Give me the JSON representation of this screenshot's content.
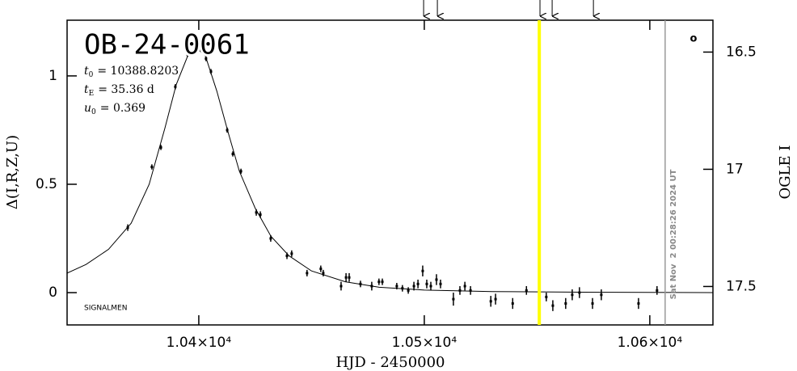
{
  "chart_data": {
    "type": "lightcurve",
    "title": "OB-24-0061",
    "parameters": [
      {
        "symbol": "t",
        "sub": "0",
        "text": "= 10388.8203"
      },
      {
        "symbol": "t",
        "sub": "E",
        "text": "= 35.36 d"
      },
      {
        "symbol": "u",
        "sub": "0",
        "text": "= 0.369"
      }
    ],
    "source_label": "SIGNALMEN",
    "timestamp": "Sat Nov  2 00:28:26 2024 UT",
    "corner_mark": "o",
    "x_label": "HJD - 2450000",
    "y_label": "Δ(I,R,Z,U)",
    "y2_label": "OGLE I",
    "xlim": [
      10341.6,
      10628.0
    ],
    "xticks": [
      {
        "value": 10400,
        "label": "1.04×10⁴"
      },
      {
        "value": 10500,
        "label": "1.05×10⁴"
      },
      {
        "value": 10600,
        "label": "1.06×10⁴"
      }
    ],
    "ylim": [
      -0.149,
      1.257
    ],
    "yticks": [
      0,
      0.5,
      1
    ],
    "y2lim": [
      17.664,
      16.364
    ],
    "y2ticks": [
      16.5,
      17,
      17.5
    ],
    "color": "#000000",
    "highlight_x": 10551.0,
    "highlight_color": "#ffff00",
    "date_line_x": 10606.8,
    "date_line_color": "#999999",
    "arrows_x": [
      10499.7,
      10505.8,
      10551.3,
      10556.7,
      10575.0
    ],
    "model": {
      "x": [
        10341.6,
        10350,
        10360,
        10370,
        10378,
        10385,
        10390,
        10395,
        10399,
        10403,
        10408,
        10413,
        10418,
        10425,
        10432,
        10440,
        10450,
        10465,
        10480,
        10500,
        10530,
        10570,
        10628
      ],
      "y": [
        0.09,
        0.13,
        0.2,
        0.32,
        0.5,
        0.76,
        0.96,
        1.09,
        1.13,
        1.09,
        0.93,
        0.74,
        0.56,
        0.39,
        0.26,
        0.17,
        0.1,
        0.05,
        0.025,
        0.012,
        0.005,
        0.002,
        0
      ]
    },
    "points": {
      "x": [
        10368.5,
        10379.2,
        10383.2,
        10389.6,
        10395.0,
        10400.4,
        10403.2,
        10405.4,
        10412.6,
        10415.1,
        10418.7,
        10425.5,
        10427.3,
        10431.9,
        10439.1,
        10441.2,
        10448.0,
        10454.1,
        10455.2,
        10463.1,
        10465.3,
        10466.7,
        10471.7,
        10476.7,
        10479.9,
        10481.4,
        10487.8,
        10490.3,
        10492.9,
        10495.4,
        10497.2,
        10499.3,
        10501.1,
        10502.9,
        10505.4,
        10507.2,
        10512.9,
        10515.8,
        10518.0,
        10520.5,
        10529.5,
        10531.6,
        10539.2,
        10545.3,
        10551.0,
        10554.1,
        10557.0,
        10562.7,
        10565.6,
        10568.8,
        10574.6,
        10578.5,
        10595.0,
        10603.2
      ],
      "y": [
        0.3,
        0.58,
        0.67,
        0.95,
        1.1,
        1.13,
        1.08,
        1.02,
        0.75,
        0.64,
        0.56,
        0.37,
        0.36,
        0.25,
        0.17,
        0.18,
        0.09,
        0.11,
        0.09,
        0.03,
        0.07,
        0.07,
        0.04,
        0.03,
        0.05,
        0.05,
        0.03,
        0.02,
        0.01,
        0.03,
        0.04,
        0.1,
        0.04,
        0.03,
        0.06,
        0.04,
        -0.03,
        0.01,
        0.03,
        0.01,
        -0.04,
        -0.03,
        -0.05,
        0.01,
        -0.05,
        -0.02,
        -0.06,
        -0.05,
        -0.01,
        0.0,
        -0.05,
        -0.01,
        -0.05,
        0.01
      ],
      "err": [
        0.015,
        0.012,
        0.012,
        0.012,
        0.012,
        0.012,
        0.012,
        0.012,
        0.012,
        0.012,
        0.012,
        0.015,
        0.015,
        0.015,
        0.015,
        0.015,
        0.015,
        0.015,
        0.015,
        0.02,
        0.02,
        0.02,
        0.015,
        0.02,
        0.015,
        0.015,
        0.015,
        0.015,
        0.015,
        0.02,
        0.02,
        0.025,
        0.02,
        0.02,
        0.025,
        0.02,
        0.03,
        0.02,
        0.02,
        0.02,
        0.025,
        0.025,
        0.025,
        0.02,
        0.025,
        0.02,
        0.025,
        0.025,
        0.025,
        0.025,
        0.025,
        0.025,
        0.025,
        0.02
      ]
    }
  }
}
